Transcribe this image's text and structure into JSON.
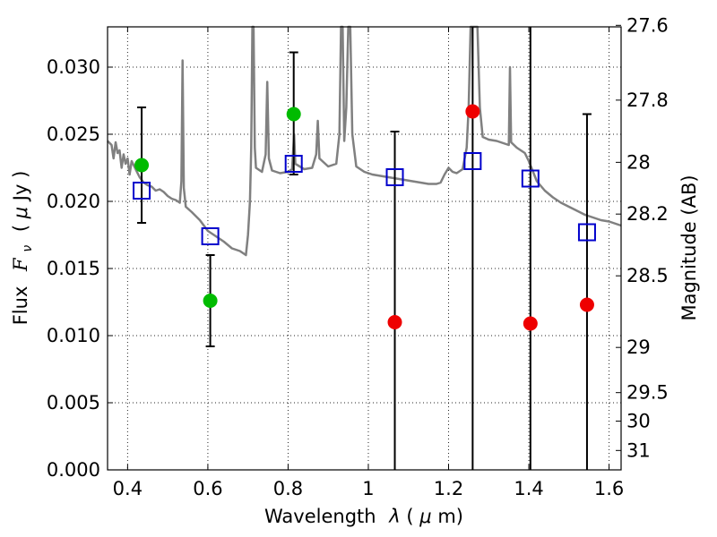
{
  "chart_data": {
    "type": "scatter",
    "xlabel": "Wavelength",
    "xlabel_symbol": "λ",
    "xlabel_unit_open": " (",
    "xlabel_unit_mu": "μ",
    "xlabel_unit_rest": "m)",
    "ylabel": "Flux",
    "ylabel_symbol": "F",
    "ylabel_sub": "ν",
    "ylabel_unit_open": "( ",
    "ylabel_unit_mu": "μ",
    "ylabel_unit_rest": "Jy )",
    "y2label": "Magnitude (AB)",
    "xlim": [
      0.35,
      1.63
    ],
    "ylim": [
      0.0,
      0.033
    ],
    "grid": true,
    "x_ticks": [
      0.4,
      0.6,
      0.8,
      1.0,
      1.2,
      1.4,
      1.6
    ],
    "x_tick_labels": [
      "0.4",
      "0.6",
      "0.8",
      "1",
      "1.2",
      "1.4",
      "1.6"
    ],
    "y_ticks": [
      0.0,
      0.005,
      0.01,
      0.015,
      0.02,
      0.025,
      0.03
    ],
    "y_tick_labels": [
      "0.000",
      "0.005",
      "0.010",
      "0.015",
      "0.020",
      "0.025",
      "0.030"
    ],
    "y2_ticks": [
      {
        "label": "27.6",
        "mag": 27.6
      },
      {
        "label": "27.8",
        "mag": 27.8
      },
      {
        "label": "28",
        "mag": 28.0
      },
      {
        "label": "28.2",
        "mag": 28.2
      },
      {
        "label": "28.5",
        "mag": 28.5
      },
      {
        "label": "29",
        "mag": 29.0
      },
      {
        "label": "29.5",
        "mag": 29.5
      },
      {
        "label": "30",
        "mag": 30.0
      },
      {
        "label": "31",
        "mag": 31.0
      }
    ],
    "colors": {
      "spectrum": "#808080",
      "model": "#0000cc",
      "detection": "#00bb00",
      "limit": "#ee0000",
      "errorbar": "#000000"
    },
    "series": [
      {
        "name": "observed-detections",
        "color": "#00bb00",
        "points": [
          {
            "x": 0.435,
            "y": 0.0227,
            "ylo": 0.0184,
            "yhi": 0.027
          },
          {
            "x": 0.606,
            "y": 0.0126,
            "ylo": 0.0092,
            "yhi": 0.016
          },
          {
            "x": 0.814,
            "y": 0.0265,
            "ylo": 0.022,
            "yhi": 0.0311
          }
        ]
      },
      {
        "name": "observed-upper-limits",
        "color": "#ee0000",
        "points": [
          {
            "x": 1.066,
            "y": 0.011,
            "ylo": 0.0,
            "yhi": 0.0252
          },
          {
            "x": 1.26,
            "y": 0.0267,
            "ylo": 0.0,
            "yhi": 0.0333
          },
          {
            "x": 1.404,
            "y": 0.0109,
            "ylo": 0.0,
            "yhi": 0.0333
          },
          {
            "x": 1.545,
            "y": 0.0123,
            "ylo": 0.0,
            "yhi": 0.0265
          }
        ]
      },
      {
        "name": "model-photometry",
        "color": "#0000cc",
        "marker": "open-square",
        "points": [
          {
            "x": 0.435,
            "y": 0.0208
          },
          {
            "x": 0.606,
            "y": 0.0174
          },
          {
            "x": 0.814,
            "y": 0.0228
          },
          {
            "x": 1.066,
            "y": 0.0218
          },
          {
            "x": 1.26,
            "y": 0.023
          },
          {
            "x": 1.404,
            "y": 0.0217
          },
          {
            "x": 1.545,
            "y": 0.0177
          }
        ]
      },
      {
        "name": "model-spectrum",
        "color": "#808080",
        "points": [
          [
            0.35,
            0.0245
          ],
          [
            0.36,
            0.0242
          ],
          [
            0.365,
            0.0232
          ],
          [
            0.37,
            0.0244
          ],
          [
            0.375,
            0.0236
          ],
          [
            0.38,
            0.0238
          ],
          [
            0.385,
            0.0225
          ],
          [
            0.39,
            0.0235
          ],
          [
            0.395,
            0.0228
          ],
          [
            0.4,
            0.0232
          ],
          [
            0.405,
            0.022
          ],
          [
            0.41,
            0.023
          ],
          [
            0.42,
            0.0224
          ],
          [
            0.43,
            0.0218
          ],
          [
            0.44,
            0.0214
          ],
          [
            0.45,
            0.0212
          ],
          [
            0.46,
            0.0211
          ],
          [
            0.47,
            0.0208
          ],
          [
            0.48,
            0.0209
          ],
          [
            0.49,
            0.0207
          ],
          [
            0.5,
            0.0204
          ],
          [
            0.51,
            0.0202
          ],
          [
            0.52,
            0.0201
          ],
          [
            0.53,
            0.0199
          ],
          [
            0.534,
            0.0215
          ],
          [
            0.537,
            0.0305
          ],
          [
            0.54,
            0.021
          ],
          [
            0.545,
            0.0196
          ],
          [
            0.56,
            0.0192
          ],
          [
            0.58,
            0.0186
          ],
          [
            0.6,
            0.0178
          ],
          [
            0.62,
            0.0174
          ],
          [
            0.64,
            0.017
          ],
          [
            0.66,
            0.0165
          ],
          [
            0.68,
            0.0163
          ],
          [
            0.695,
            0.016
          ],
          [
            0.7,
            0.0175
          ],
          [
            0.705,
            0.02
          ],
          [
            0.708,
            0.024
          ],
          [
            0.711,
            0.0333
          ],
          [
            0.714,
            0.0333
          ],
          [
            0.717,
            0.024
          ],
          [
            0.72,
            0.0225
          ],
          [
            0.735,
            0.0222
          ],
          [
            0.744,
            0.0235
          ],
          [
            0.748,
            0.0289
          ],
          [
            0.752,
            0.0232
          ],
          [
            0.76,
            0.0223
          ],
          [
            0.78,
            0.0221
          ],
          [
            0.8,
            0.0222
          ],
          [
            0.81,
            0.0224
          ],
          [
            0.815,
            0.025
          ],
          [
            0.818,
            0.0228
          ],
          [
            0.84,
            0.0224
          ],
          [
            0.86,
            0.0225
          ],
          [
            0.87,
            0.0235
          ],
          [
            0.874,
            0.026
          ],
          [
            0.878,
            0.0232
          ],
          [
            0.9,
            0.0226
          ],
          [
            0.92,
            0.0228
          ],
          [
            0.928,
            0.025
          ],
          [
            0.932,
            0.0333
          ],
          [
            0.936,
            0.0333
          ],
          [
            0.94,
            0.0245
          ],
          [
            0.945,
            0.027
          ],
          [
            0.95,
            0.0333
          ],
          [
            0.955,
            0.0333
          ],
          [
            0.96,
            0.025
          ],
          [
            0.97,
            0.0226
          ],
          [
            0.99,
            0.0222
          ],
          [
            1.01,
            0.022
          ],
          [
            1.03,
            0.0219
          ],
          [
            1.05,
            0.0218
          ],
          [
            1.07,
            0.0217
          ],
          [
            1.09,
            0.0216
          ],
          [
            1.11,
            0.0215
          ],
          [
            1.13,
            0.0214
          ],
          [
            1.15,
            0.0213
          ],
          [
            1.17,
            0.0213
          ],
          [
            1.18,
            0.0214
          ],
          [
            1.19,
            0.022
          ],
          [
            1.2,
            0.0225
          ],
          [
            1.21,
            0.0222
          ],
          [
            1.22,
            0.0221
          ],
          [
            1.235,
            0.0224
          ],
          [
            1.245,
            0.024
          ],
          [
            1.25,
            0.027
          ],
          [
            1.255,
            0.0333
          ],
          [
            1.265,
            0.0333
          ],
          [
            1.272,
            0.0333
          ],
          [
            1.278,
            0.027
          ],
          [
            1.285,
            0.0248
          ],
          [
            1.3,
            0.0246
          ],
          [
            1.32,
            0.0245
          ],
          [
            1.34,
            0.0243
          ],
          [
            1.35,
            0.0242
          ],
          [
            1.353,
            0.03
          ],
          [
            1.356,
            0.0244
          ],
          [
            1.37,
            0.024
          ],
          [
            1.39,
            0.0236
          ],
          [
            1.4,
            0.023
          ],
          [
            1.42,
            0.0215
          ],
          [
            1.44,
            0.0208
          ],
          [
            1.46,
            0.0203
          ],
          [
            1.48,
            0.0199
          ],
          [
            1.5,
            0.0196
          ],
          [
            1.52,
            0.0193
          ],
          [
            1.54,
            0.019
          ],
          [
            1.56,
            0.0188
          ],
          [
            1.58,
            0.0186
          ],
          [
            1.6,
            0.0185
          ],
          [
            1.62,
            0.0183
          ],
          [
            1.63,
            0.0182
          ]
        ]
      }
    ]
  }
}
